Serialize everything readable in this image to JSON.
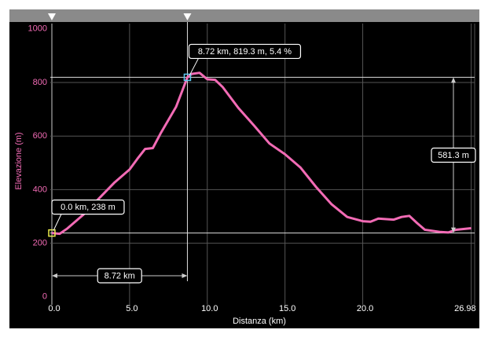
{
  "chart_data": {
    "type": "line",
    "xlabel": "Distanza (km)",
    "ylabel": "Elevazione (m)",
    "x": [
      0,
      0.5,
      1,
      2,
      3,
      4,
      5,
      5.5,
      6,
      6.5,
      7,
      8,
      8.72,
      9,
      9.5,
      10,
      10.5,
      11,
      12,
      13,
      14,
      15,
      16,
      17,
      18,
      19,
      20,
      20.5,
      21,
      22,
      22.5,
      23,
      23.5,
      24,
      25,
      25.5,
      26,
      26.98
    ],
    "series": [
      {
        "name": "Elevazione",
        "color": "#f26bb5",
        "values": [
          238,
          235,
          255,
          305,
          365,
          425,
          475,
          515,
          552,
          555,
          610,
          710,
          819.3,
          832,
          836,
          812,
          810,
          782,
          705,
          640,
          572,
          532,
          482,
          410,
          345,
          298,
          282,
          280,
          292,
          288,
          298,
          302,
          275,
          250,
          242,
          240,
          250,
          256
        ]
      }
    ],
    "xlim": [
      -0.1,
      27.2
    ],
    "ylim": [
      -30,
      1020
    ],
    "xticks": [
      {
        "value": 0,
        "label": "0.0"
      },
      {
        "value": 5,
        "label": "5.0"
      },
      {
        "value": 10,
        "label": "10.0"
      },
      {
        "value": 15,
        "label": "15.0"
      },
      {
        "value": 20,
        "label": "20.0"
      },
      26.98
    ],
    "yticks": [
      0,
      200,
      400,
      600,
      800,
      1000
    ],
    "grid": true,
    "cursor": {
      "x": 8.72,
      "y": 819.3,
      "label": "8.72 km, 819.3 m, 5.4 %"
    },
    "start": {
      "x": 0,
      "y": 238,
      "label": "0.0 km, 238 m"
    },
    "distance_label": "8.72 km",
    "climb_label": "581.3 m"
  }
}
